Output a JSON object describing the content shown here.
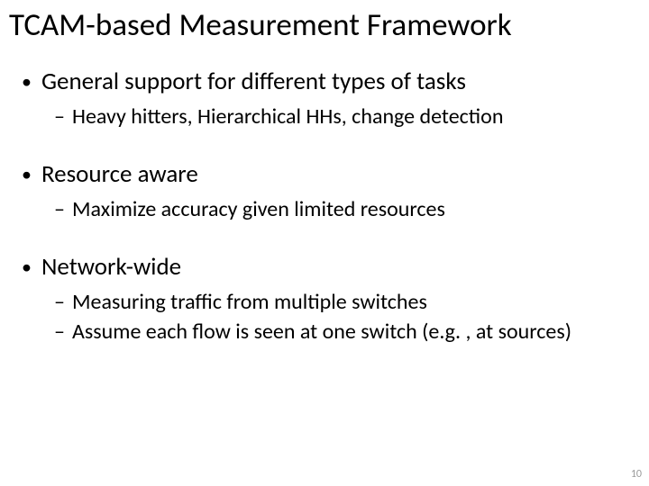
{
  "title": "TCAM-based Measurement Framework",
  "bullets": [
    {
      "text": "General support for different types of tasks",
      "sub": [
        "Heavy hitters, Hierarchical HHs, change detection"
      ]
    },
    {
      "text": "Resource aware",
      "sub": [
        "Maximize accuracy given limited resources"
      ]
    },
    {
      "text": "Network-wide",
      "sub": [
        "Measuring traffic from multiple switches",
        "Assume each flow is seen at one switch (e.g. , at sources)"
      ]
    }
  ],
  "pageNumber": "10",
  "style": {
    "background_color": "#ffffff",
    "text_color": "#000000",
    "font_family": "Calibri",
    "title_fontsize": 35,
    "l1_fontsize": 27,
    "l2_fontsize": 24,
    "pagenum_fontsize": 12,
    "pagenum_color": "#9a9a9a",
    "bullet_glyph": "•",
    "dash_glyph": "–",
    "slide_width": 720,
    "slide_height": 540
  }
}
